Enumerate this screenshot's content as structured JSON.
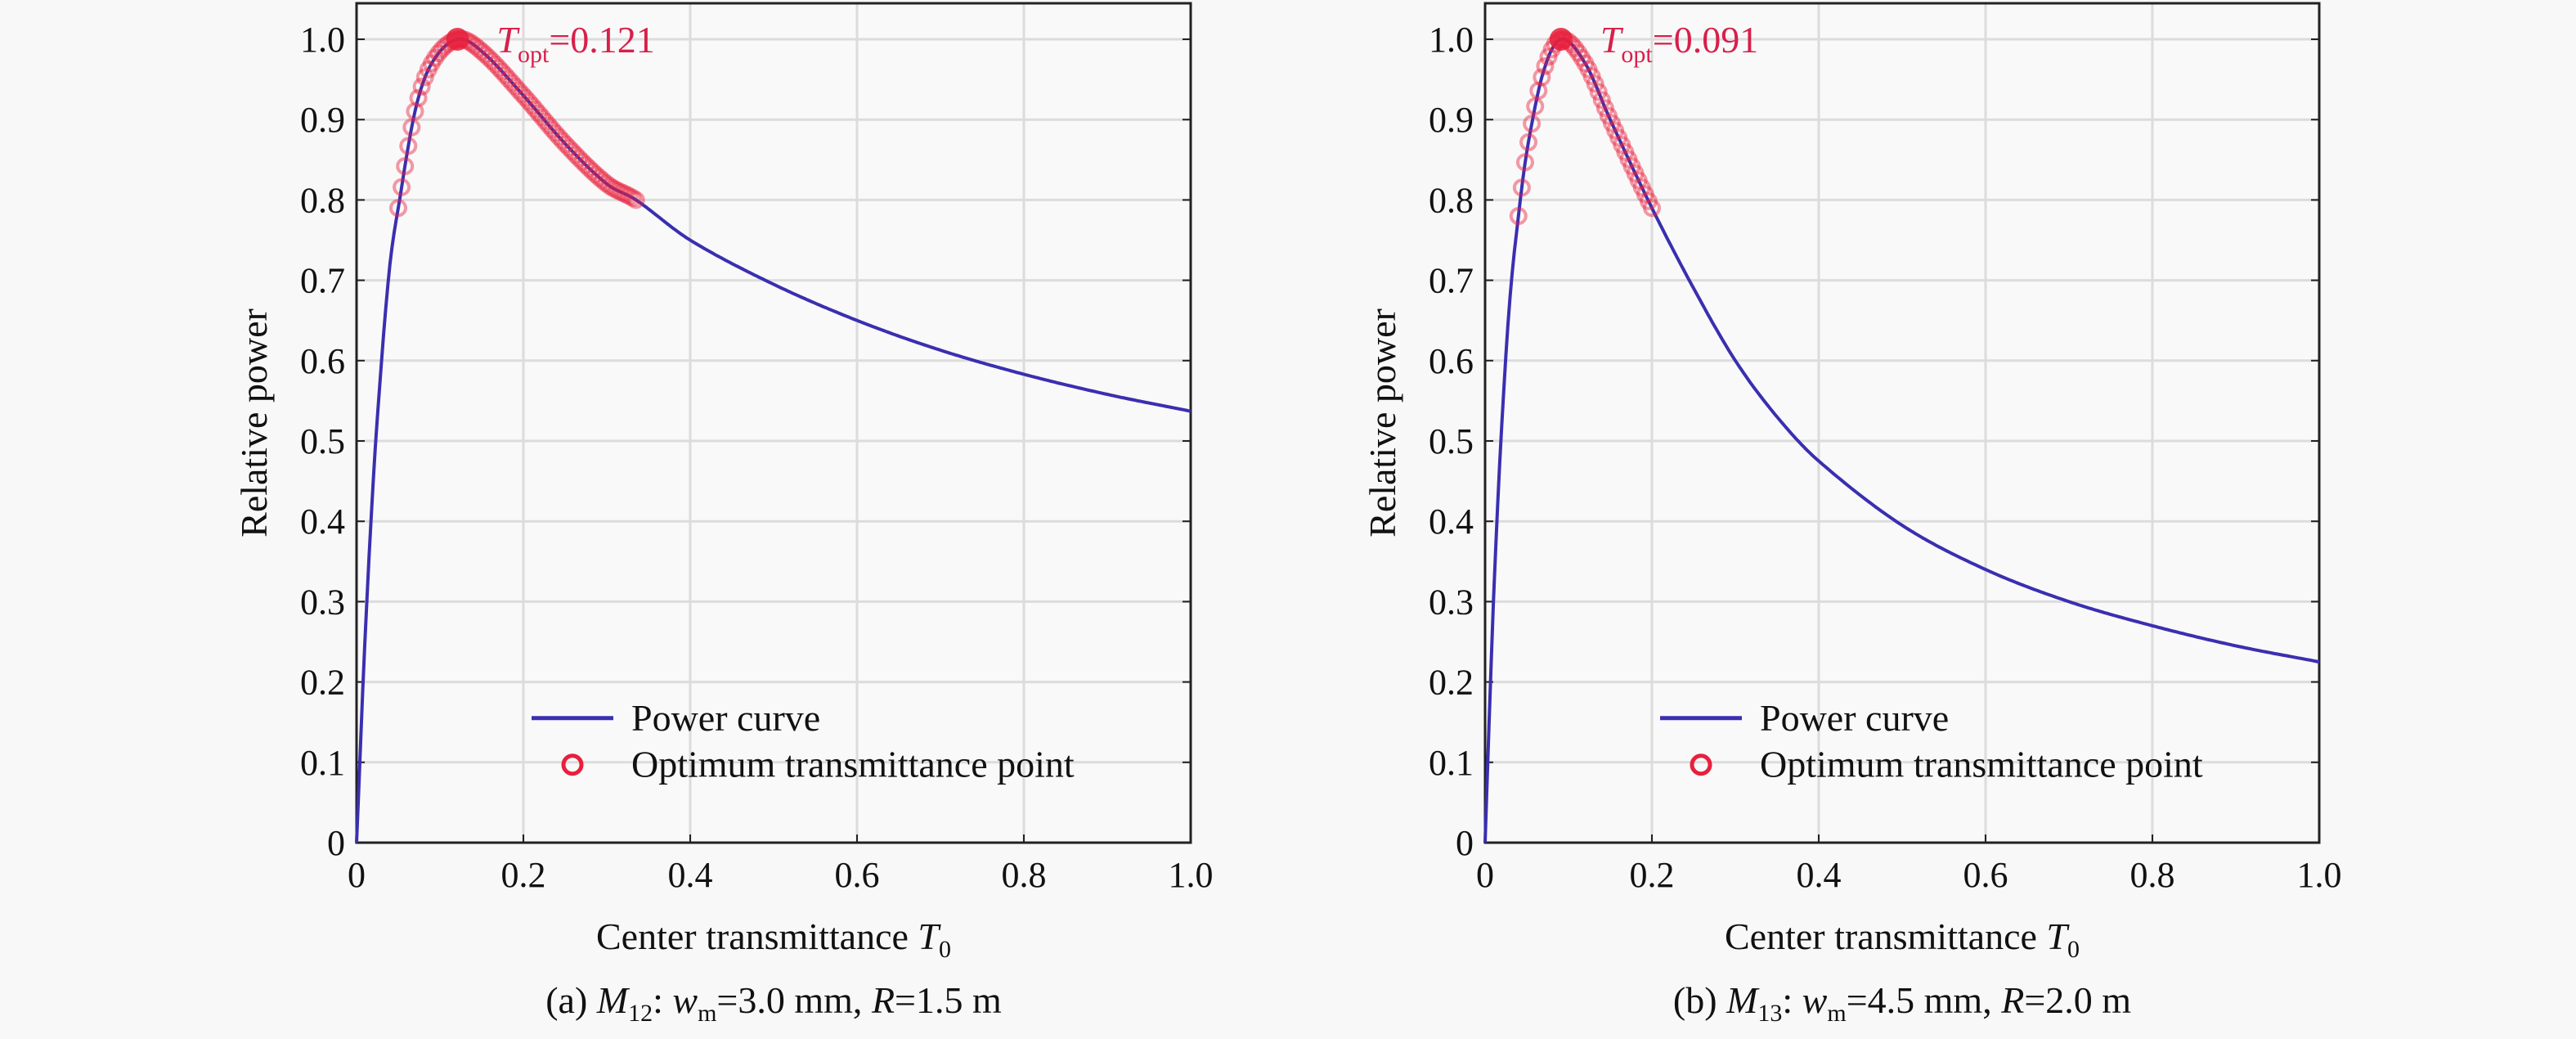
{
  "chart_data": [
    {
      "type": "line",
      "panel": "a",
      "xlabel": "Center transmittance",
      "xlabel_symbol": "T",
      "xlabel_sub": "0",
      "ylabel": "Relative power",
      "xlim": [
        0,
        1.0
      ],
      "ylim": [
        0,
        1.0
      ],
      "xticks": [
        "0",
        "0.2",
        "0.4",
        "0.6",
        "0.8",
        "1.0"
      ],
      "yticks": [
        "0",
        "0.1",
        "0.2",
        "0.3",
        "0.4",
        "0.5",
        "0.6",
        "0.7",
        "0.8",
        "0.9",
        "1.0"
      ],
      "grid": true,
      "legend_position": "bottom-right",
      "series": [
        {
          "name": "Power curve",
          "color": "#3a2fb0",
          "x": [
            0,
            0.01,
            0.02,
            0.03,
            0.04,
            0.05,
            0.07,
            0.09,
            0.121,
            0.15,
            0.2,
            0.25,
            0.3,
            0.335,
            0.4,
            0.5,
            0.6,
            0.7,
            0.8,
            0.9,
            1.0
          ],
          "y": [
            0,
            0.25,
            0.45,
            0.6,
            0.72,
            0.79,
            0.91,
            0.97,
            1.0,
            0.985,
            0.93,
            0.87,
            0.82,
            0.8,
            0.75,
            0.695,
            0.65,
            0.613,
            0.583,
            0.558,
            0.537
          ]
        },
        {
          "name": "Optimum transmittance point",
          "color": "#e8203c",
          "x_range": [
            0.05,
            0.335
          ]
        }
      ],
      "annotation": {
        "symbol": "T",
        "sub": "opt",
        "value": "=0.121",
        "x": 0.121,
        "y": 1.0
      },
      "caption": {
        "label": "(a) ",
        "M": "M",
        "M_sub": "12",
        "colon": ": ",
        "w": "w",
        "w_sub": "m",
        "w_val": "=3.0 mm, ",
        "R": "R",
        "R_val": "=1.5 m"
      }
    },
    {
      "type": "line",
      "panel": "b",
      "xlabel": "Center transmittance",
      "xlabel_symbol": "T",
      "xlabel_sub": "0",
      "ylabel": "Relative power",
      "xlim": [
        0,
        1.0
      ],
      "ylim": [
        0,
        1.0
      ],
      "xticks": [
        "0",
        "0.2",
        "0.4",
        "0.6",
        "0.8",
        "1.0"
      ],
      "yticks": [
        "0",
        "0.1",
        "0.2",
        "0.3",
        "0.4",
        "0.5",
        "0.6",
        "0.7",
        "0.8",
        "0.9",
        "1.0"
      ],
      "grid": true,
      "legend_position": "bottom-right",
      "series": [
        {
          "name": "Power curve",
          "color": "#3a2fb0",
          "x": [
            0,
            0.01,
            0.02,
            0.03,
            0.04,
            0.05,
            0.07,
            0.091,
            0.12,
            0.15,
            0.2,
            0.25,
            0.3,
            0.35,
            0.4,
            0.5,
            0.6,
            0.7,
            0.8,
            0.9,
            1.0
          ],
          "y": [
            0,
            0.3,
            0.52,
            0.68,
            0.78,
            0.86,
            0.96,
            1.0,
            0.97,
            0.9,
            0.79,
            0.69,
            0.6,
            0.53,
            0.475,
            0.395,
            0.34,
            0.3,
            0.27,
            0.245,
            0.225
          ]
        },
        {
          "name": "Optimum transmittance point",
          "color": "#e8203c",
          "x_range": [
            0.04,
            0.2
          ]
        }
      ],
      "annotation": {
        "symbol": "T",
        "sub": "opt",
        "value": "=0.091",
        "x": 0.091,
        "y": 1.0
      },
      "caption": {
        "label": "(b) ",
        "M": "M",
        "M_sub": "13",
        "colon": ": ",
        "w": "w",
        "w_sub": "m",
        "w_val": "=4.5 mm, ",
        "R": "R",
        "R_val": "=2.0 m"
      }
    }
  ]
}
